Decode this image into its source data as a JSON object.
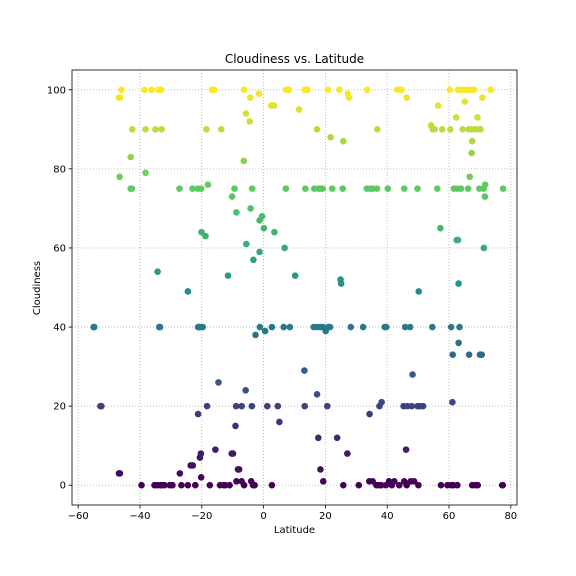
{
  "chart_data": {
    "type": "scatter",
    "title": "Cloudiness vs. Latitude",
    "xlabel": "Latitude",
    "ylabel": "Cloudiness",
    "xlim": [
      -62,
      82
    ],
    "ylim": [
      -5,
      105
    ],
    "xticks": [
      -60,
      -40,
      -20,
      0,
      20,
      40,
      60,
      80
    ],
    "yticks": [
      0,
      20,
      40,
      60,
      80,
      100
    ],
    "grid": true,
    "grid_style": "dotted",
    "colormap": "viridis",
    "colormap_stops": [
      "#440154",
      "#3b528b",
      "#21918c",
      "#5ec962",
      "#fde725"
    ],
    "color_by": "y",
    "points": [
      [
        -46.5,
        98
      ],
      [
        -46,
        100
      ],
      [
        -46.8,
        98
      ],
      [
        -38.5,
        100
      ],
      [
        -36.2,
        100
      ],
      [
        -34,
        100
      ],
      [
        -33.2,
        100
      ],
      [
        -16.7,
        100
      ],
      [
        -16,
        100
      ],
      [
        -6.3,
        100
      ],
      [
        -5.7,
        94
      ],
      [
        -4.3,
        98
      ],
      [
        -1.5,
        99
      ],
      [
        2.5,
        96
      ],
      [
        3.4,
        96
      ],
      [
        7.3,
        100
      ],
      [
        8.2,
        100
      ],
      [
        11.5,
        95
      ],
      [
        13.3,
        100
      ],
      [
        14.2,
        100
      ],
      [
        20.8,
        100
      ],
      [
        24.5,
        100
      ],
      [
        27.3,
        99
      ],
      [
        27.6,
        98
      ],
      [
        33.5,
        100
      ],
      [
        43.3,
        100
      ],
      [
        44.6,
        100
      ],
      [
        46.3,
        98
      ],
      [
        54.2,
        91
      ],
      [
        54.7,
        90
      ],
      [
        55.4,
        90
      ],
      [
        56.5,
        96
      ],
      [
        60.2,
        100
      ],
      [
        62.3,
        93
      ],
      [
        62.9,
        100
      ],
      [
        64.2,
        100
      ],
      [
        64.4,
        90
      ],
      [
        65.1,
        97
      ],
      [
        65.6,
        100
      ],
      [
        66.4,
        90
      ],
      [
        66.8,
        100
      ],
      [
        67.2,
        90
      ],
      [
        68.1,
        100
      ],
      [
        68.4,
        90
      ],
      [
        69.2,
        93
      ],
      [
        69.4,
        90
      ],
      [
        70.2,
        90
      ],
      [
        70.8,
        98
      ],
      [
        73.5,
        100
      ],
      [
        -42.5,
        90
      ],
      [
        -38.2,
        90
      ],
      [
        -35,
        90
      ],
      [
        -33,
        90
      ],
      [
        -18.5,
        90
      ],
      [
        -13.7,
        90
      ],
      [
        -4.5,
        92
      ],
      [
        17.3,
        90
      ],
      [
        21.7,
        88
      ],
      [
        25.8,
        87
      ],
      [
        36.8,
        90
      ],
      [
        57.8,
        90
      ],
      [
        60.4,
        90
      ],
      [
        67.5,
        87
      ],
      [
        -43,
        83
      ],
      [
        -46.6,
        78
      ],
      [
        -38.2,
        79
      ],
      [
        -43,
        75
      ],
      [
        -42.6,
        75
      ],
      [
        -27.2,
        75
      ],
      [
        -23,
        75
      ],
      [
        -21.3,
        75
      ],
      [
        -20.2,
        75
      ],
      [
        -18,
        76
      ],
      [
        -10.2,
        73
      ],
      [
        -9.4,
        75
      ],
      [
        -6.4,
        82
      ],
      [
        -3.7,
        75
      ],
      [
        7.2,
        75
      ],
      [
        13.5,
        75
      ],
      [
        16.4,
        75
      ],
      [
        17.8,
        75
      ],
      [
        18.5,
        75
      ],
      [
        19.1,
        75
      ],
      [
        22.2,
        75
      ],
      [
        25.6,
        75
      ],
      [
        33.4,
        75
      ],
      [
        34.5,
        75
      ],
      [
        35.3,
        75
      ],
      [
        36.7,
        75
      ],
      [
        40.2,
        75
      ],
      [
        45.5,
        75
      ],
      [
        49.8,
        75
      ],
      [
        56.2,
        75
      ],
      [
        61.6,
        75
      ],
      [
        62.8,
        75
      ],
      [
        63.9,
        75
      ],
      [
        66.2,
        75
      ],
      [
        66.7,
        78
      ],
      [
        67.3,
        84
      ],
      [
        69.8,
        75
      ],
      [
        71.2,
        75
      ],
      [
        71.7,
        76
      ],
      [
        71.6,
        73
      ],
      [
        71.3,
        60
      ],
      [
        77.5,
        75
      ],
      [
        -8.8,
        69
      ],
      [
        -4.2,
        70
      ],
      [
        -20.1,
        64
      ],
      [
        -18.8,
        63
      ],
      [
        -5.6,
        61
      ],
      [
        -1.3,
        67
      ],
      [
        -0.5,
        68
      ],
      [
        0.1,
        65
      ],
      [
        3.5,
        64
      ],
      [
        6.8,
        60
      ],
      [
        -1.3,
        59
      ],
      [
        -11.5,
        53
      ],
      [
        -3.3,
        57
      ],
      [
        10.2,
        53
      ],
      [
        24.9,
        52
      ],
      [
        25.1,
        51
      ],
      [
        50.2,
        49
      ],
      [
        57.2,
        65
      ],
      [
        62.5,
        62
      ],
      [
        62.9,
        62
      ],
      [
        63.1,
        51
      ],
      [
        -34.3,
        54
      ],
      [
        -24.5,
        49
      ],
      [
        -55,
        40
      ],
      [
        -54.8,
        40
      ],
      [
        -33.8,
        40
      ],
      [
        -33.5,
        40
      ],
      [
        -21.2,
        40
      ],
      [
        -20.5,
        40
      ],
      [
        -19.7,
        40
      ],
      [
        -20.9,
        40
      ],
      [
        -1.2,
        40
      ],
      [
        0.5,
        39
      ],
      [
        2.7,
        40
      ],
      [
        6.5,
        40
      ],
      [
        8.5,
        40
      ],
      [
        16.2,
        40
      ],
      [
        17.3,
        40
      ],
      [
        18.4,
        40
      ],
      [
        19.2,
        40
      ],
      [
        20.1,
        39
      ],
      [
        20.9,
        40
      ],
      [
        21.5,
        40
      ],
      [
        28.2,
        40
      ],
      [
        32.2,
        40
      ],
      [
        39.2,
        40
      ],
      [
        39.7,
        40
      ],
      [
        45.8,
        40
      ],
      [
        47.4,
        40
      ],
      [
        54.6,
        40
      ],
      [
        60.7,
        40
      ],
      [
        63.4,
        40
      ],
      [
        -2.6,
        38
      ],
      [
        61.2,
        33
      ],
      [
        63.1,
        36
      ],
      [
        66.5,
        33
      ],
      [
        70,
        33
      ],
      [
        70.6,
        33
      ],
      [
        -52.8,
        20
      ],
      [
        -52.5,
        20
      ],
      [
        -14.6,
        26
      ],
      [
        -18.3,
        20
      ],
      [
        -21.2,
        18
      ],
      [
        -8.9,
        20
      ],
      [
        -7.1,
        20
      ],
      [
        -5.8,
        24
      ],
      [
        -3.8,
        20
      ],
      [
        1.2,
        20
      ],
      [
        4.6,
        20
      ],
      [
        5.1,
        16
      ],
      [
        13.2,
        29
      ],
      [
        13.3,
        20
      ],
      [
        17.3,
        23
      ],
      [
        20.6,
        20
      ],
      [
        34.3,
        18
      ],
      [
        37.5,
        20
      ],
      [
        38.2,
        21
      ],
      [
        45.3,
        20
      ],
      [
        46.5,
        20
      ],
      [
        47.9,
        20
      ],
      [
        48.2,
        28
      ],
      [
        49.8,
        20
      ],
      [
        50.5,
        20
      ],
      [
        51.6,
        20
      ],
      [
        61.1,
        21
      ],
      [
        -46.5,
        3
      ],
      [
        -46.8,
        3
      ],
      [
        -39.5,
        0
      ],
      [
        -35.3,
        0
      ],
      [
        -34.4,
        0
      ],
      [
        -33.4,
        0
      ],
      [
        -33,
        0
      ],
      [
        -32.1,
        0
      ],
      [
        -30.4,
        0
      ],
      [
        -29.5,
        0
      ],
      [
        -27.1,
        3
      ],
      [
        -26.6,
        0
      ],
      [
        -24.5,
        0
      ],
      [
        -23.6,
        5
      ],
      [
        -22.9,
        5
      ],
      [
        -22.1,
        0
      ],
      [
        -20.6,
        7
      ],
      [
        -20.3,
        8
      ],
      [
        -20.2,
        2
      ],
      [
        -17.4,
        0
      ],
      [
        -15.6,
        9
      ],
      [
        -14.1,
        0
      ],
      [
        -12.9,
        0
      ],
      [
        -12.4,
        0
      ],
      [
        -11,
        0
      ],
      [
        -10.3,
        8
      ],
      [
        -9.9,
        8
      ],
      [
        -9.1,
        15
      ],
      [
        -8.8,
        1
      ],
      [
        -8.3,
        4
      ],
      [
        -7.9,
        4
      ],
      [
        -7.1,
        1
      ],
      [
        -6.3,
        0
      ],
      [
        -4,
        1
      ],
      [
        -3.4,
        0
      ],
      [
        -2.9,
        0
      ],
      [
        2.7,
        0
      ],
      [
        17.7,
        12
      ],
      [
        18.4,
        4
      ],
      [
        19.3,
        1
      ],
      [
        23.8,
        12
      ],
      [
        25.8,
        0
      ],
      [
        27.1,
        8
      ],
      [
        30.8,
        0
      ],
      [
        34.2,
        1
      ],
      [
        35.3,
        1
      ],
      [
        36.5,
        0
      ],
      [
        37.4,
        0
      ],
      [
        38.1,
        0
      ],
      [
        39.6,
        0
      ],
      [
        40.6,
        1
      ],
      [
        41.5,
        0
      ],
      [
        42.3,
        1
      ],
      [
        43.9,
        0
      ],
      [
        45.5,
        1
      ],
      [
        46.1,
        9
      ],
      [
        46.3,
        0
      ],
      [
        47.6,
        1
      ],
      [
        48.7,
        1
      ],
      [
        50.1,
        0
      ],
      [
        57.4,
        0
      ],
      [
        59.5,
        0
      ],
      [
        60.7,
        0
      ],
      [
        61.4,
        0
      ],
      [
        62.7,
        0
      ],
      [
        67.5,
        0
      ],
      [
        68.5,
        0
      ],
      [
        69.3,
        0
      ],
      [
        77.2,
        0
      ],
      [
        77.4,
        0
      ]
    ]
  }
}
